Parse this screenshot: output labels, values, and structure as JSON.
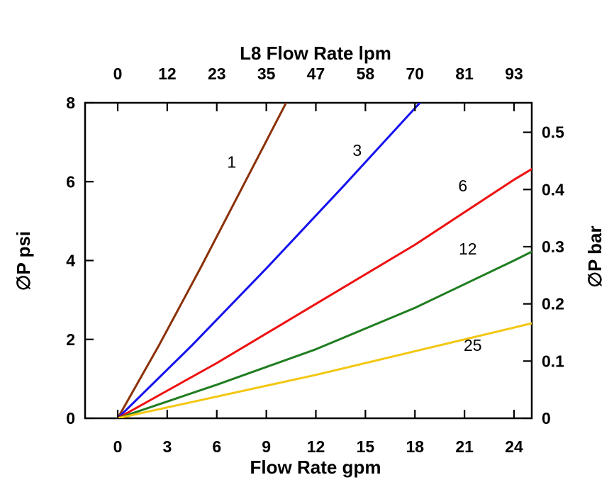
{
  "chart_data": {
    "type": "line",
    "title": "L8 Flow Rate lpm",
    "xlabel_top": "L8 Flow Rate lpm",
    "xlabel_bottom": "Flow Rate gpm",
    "ylabel_left": "∅P psi",
    "ylabel_right": "∅P bar",
    "xlim": [
      0,
      24
    ],
    "ylim": [
      0,
      8
    ],
    "grid": false,
    "frame_color": "#000000",
    "x_bottom_ticks": {
      "positions": [
        0,
        3,
        6,
        9,
        12,
        15,
        18,
        21,
        24
      ],
      "labels": [
        "0",
        "3",
        "6",
        "9",
        "12",
        "15",
        "18",
        "21",
        "24"
      ]
    },
    "x_top_ticks": {
      "positions_gpm": [
        0,
        3,
        6,
        9,
        12,
        15,
        18,
        21,
        24
      ],
      "labels": [
        "0",
        "12",
        "23",
        "35",
        "47",
        "58",
        "70",
        "81",
        "93"
      ]
    },
    "y_left_ticks": {
      "positions": [
        0,
        2,
        4,
        6,
        8
      ],
      "labels": [
        "0",
        "2",
        "4",
        "6",
        "8"
      ]
    },
    "y_right_ticks": {
      "positions_bar": [
        0,
        0.1,
        0.2,
        0.3,
        0.4,
        0.5
      ],
      "labels": [
        "0",
        "0.1",
        "0.2",
        "0.3",
        "0.4",
        "0.5"
      ],
      "psi_per_bar": 14.5038
    },
    "series": [
      {
        "label": "1",
        "color": "#8b3109",
        "points": [
          [
            0,
            0
          ],
          [
            2.5,
            1.85
          ],
          [
            5.0,
            3.8
          ],
          [
            7.6,
            5.9
          ],
          [
            10.2,
            8.0
          ]
        ],
        "label_pos": [
          6.9,
          6.5
        ]
      },
      {
        "label": "3",
        "color": "#1612ee",
        "points": [
          [
            0,
            0
          ],
          [
            4.5,
            1.85
          ],
          [
            9.0,
            3.8
          ],
          [
            13.7,
            5.9
          ],
          [
            18.3,
            8.0
          ]
        ],
        "label_pos": [
          14.5,
          6.8
        ]
      },
      {
        "label": "6",
        "color": "#ee1010",
        "points": [
          [
            0,
            0
          ],
          [
            6.0,
            1.4
          ],
          [
            12.0,
            2.9
          ],
          [
            18.0,
            4.4
          ],
          [
            24.0,
            6.05
          ],
          [
            25.2,
            6.35
          ]
        ],
        "label_pos": [
          20.9,
          5.9
        ]
      },
      {
        "label": "12",
        "color": "#1f7d20",
        "points": [
          [
            0,
            0
          ],
          [
            6.0,
            0.85
          ],
          [
            12.0,
            1.75
          ],
          [
            18.0,
            2.8
          ],
          [
            24.0,
            4.0
          ],
          [
            25.2,
            4.25
          ]
        ],
        "label_pos": [
          21.2,
          4.3
        ]
      },
      {
        "label": "25",
        "color": "#f3c711",
        "points": [
          [
            0,
            0
          ],
          [
            6.0,
            0.55
          ],
          [
            12.0,
            1.1
          ],
          [
            18.0,
            1.7
          ],
          [
            24.0,
            2.3
          ],
          [
            25.2,
            2.42
          ]
        ],
        "label_pos": [
          21.5,
          1.85
        ]
      }
    ]
  }
}
